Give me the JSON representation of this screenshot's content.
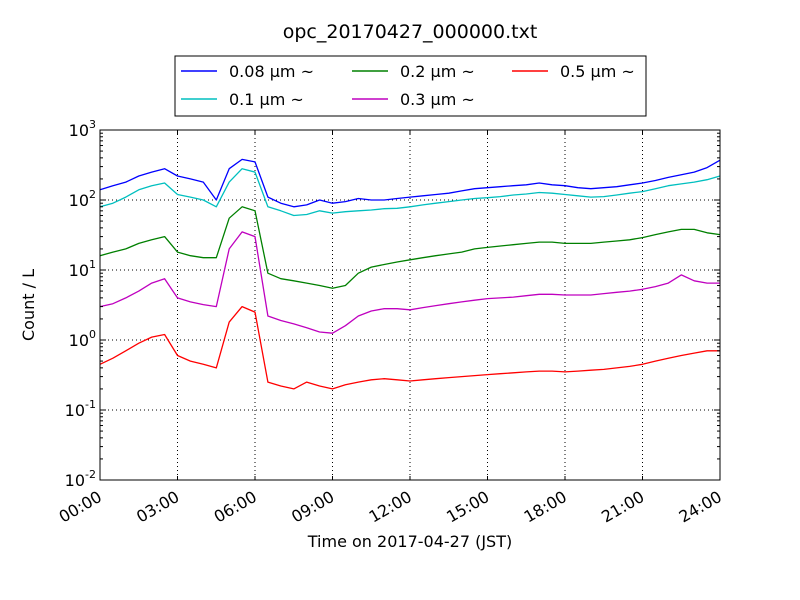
{
  "chart_data": {
    "type": "line",
    "title": "opc_20170427_000000.txt",
    "xlabel": "Time on 2017-04-27 (JST)",
    "ylabel": "Count / L",
    "yscale": "log",
    "xlim": [
      "00:00",
      "24:00"
    ],
    "ylim": [
      0.01,
      1000
    ],
    "grid": true,
    "legend_position": "top",
    "x_ticks": [
      "00:00",
      "03:00",
      "06:00",
      "09:00",
      "12:00",
      "15:00",
      "18:00",
      "21:00",
      "24:00"
    ],
    "y_ticks": [
      {
        "value": 0.01,
        "base": "10",
        "exp": "-2"
      },
      {
        "value": 0.1,
        "base": "10",
        "exp": "-1"
      },
      {
        "value": 1,
        "base": "10",
        "exp": "0"
      },
      {
        "value": 10,
        "base": "10",
        "exp": "1"
      },
      {
        "value": 100,
        "base": "10",
        "exp": "2"
      },
      {
        "value": 1000,
        "base": "10",
        "exp": "3"
      }
    ],
    "x": [
      "00:00",
      "00:30",
      "01:00",
      "01:30",
      "02:00",
      "02:30",
      "03:00",
      "03:30",
      "04:00",
      "04:30",
      "05:00",
      "05:30",
      "06:00",
      "06:30",
      "07:00",
      "07:30",
      "08:00",
      "08:30",
      "09:00",
      "09:30",
      "10:00",
      "10:30",
      "11:00",
      "11:30",
      "12:00",
      "12:30",
      "13:00",
      "13:30",
      "14:00",
      "14:30",
      "15:00",
      "15:30",
      "16:00",
      "16:30",
      "17:00",
      "17:30",
      "18:00",
      "18:30",
      "19:00",
      "19:30",
      "20:00",
      "20:30",
      "21:00",
      "21:30",
      "22:00",
      "22:30",
      "23:00",
      "23:30",
      "24:00"
    ],
    "series": [
      {
        "name": "0.08 μm ~",
        "color": "#0000ff",
        "values": [
          140,
          160,
          180,
          220,
          250,
          280,
          220,
          200,
          180,
          100,
          280,
          380,
          350,
          110,
          90,
          80,
          85,
          100,
          90,
          95,
          105,
          100,
          100,
          105,
          110,
          115,
          120,
          125,
          135,
          145,
          150,
          155,
          160,
          165,
          175,
          165,
          160,
          150,
          145,
          150,
          155,
          165,
          175,
          190,
          210,
          230,
          250,
          290,
          370
        ]
      },
      {
        "name": "0.1 μm ~",
        "color": "#00bfbf",
        "values": [
          80,
          90,
          110,
          140,
          160,
          175,
          120,
          110,
          100,
          80,
          180,
          280,
          250,
          80,
          70,
          60,
          62,
          70,
          65,
          68,
          70,
          72,
          75,
          76,
          80,
          85,
          90,
          95,
          100,
          105,
          108,
          112,
          118,
          122,
          128,
          125,
          120,
          115,
          110,
          112,
          118,
          125,
          132,
          145,
          160,
          170,
          180,
          195,
          220
        ]
      },
      {
        "name": "0.2 μm ~",
        "color": "#008000",
        "values": [
          16,
          18,
          20,
          24,
          27,
          30,
          18,
          16,
          15,
          15,
          55,
          80,
          70,
          9,
          7.5,
          7,
          6.5,
          6,
          5.5,
          6,
          9,
          11,
          12,
          13,
          14,
          15,
          16,
          17,
          18,
          20,
          21,
          22,
          23,
          24,
          25,
          25,
          24,
          24,
          24,
          25,
          26,
          27,
          29,
          32,
          35,
          38,
          38,
          34,
          32
        ]
      },
      {
        "name": "0.3 μm ~",
        "color": "#bf00bf",
        "values": [
          3,
          3.3,
          4,
          5,
          6.5,
          7.5,
          4,
          3.5,
          3.2,
          3,
          20,
          35,
          30,
          2.2,
          1.9,
          1.7,
          1.5,
          1.3,
          1.25,
          1.6,
          2.2,
          2.6,
          2.8,
          2.8,
          2.7,
          2.9,
          3.1,
          3.3,
          3.5,
          3.7,
          3.9,
          4,
          4.1,
          4.3,
          4.5,
          4.5,
          4.4,
          4.4,
          4.4,
          4.6,
          4.8,
          5,
          5.3,
          5.8,
          6.5,
          8.5,
          7,
          6.5,
          6.5
        ]
      },
      {
        "name": "0.5 μm ~",
        "color": "#ff0000",
        "values": [
          0.45,
          0.55,
          0.7,
          0.9,
          1.1,
          1.2,
          0.6,
          0.5,
          0.45,
          0.4,
          1.8,
          3,
          2.5,
          0.25,
          0.22,
          0.2,
          0.25,
          0.22,
          0.2,
          0.23,
          0.25,
          0.27,
          0.28,
          0.27,
          0.26,
          0.27,
          0.28,
          0.29,
          0.3,
          0.31,
          0.32,
          0.33,
          0.34,
          0.35,
          0.36,
          0.36,
          0.35,
          0.36,
          0.37,
          0.38,
          0.4,
          0.42,
          0.45,
          0.5,
          0.55,
          0.6,
          0.65,
          0.7,
          0.7
        ]
      }
    ]
  }
}
